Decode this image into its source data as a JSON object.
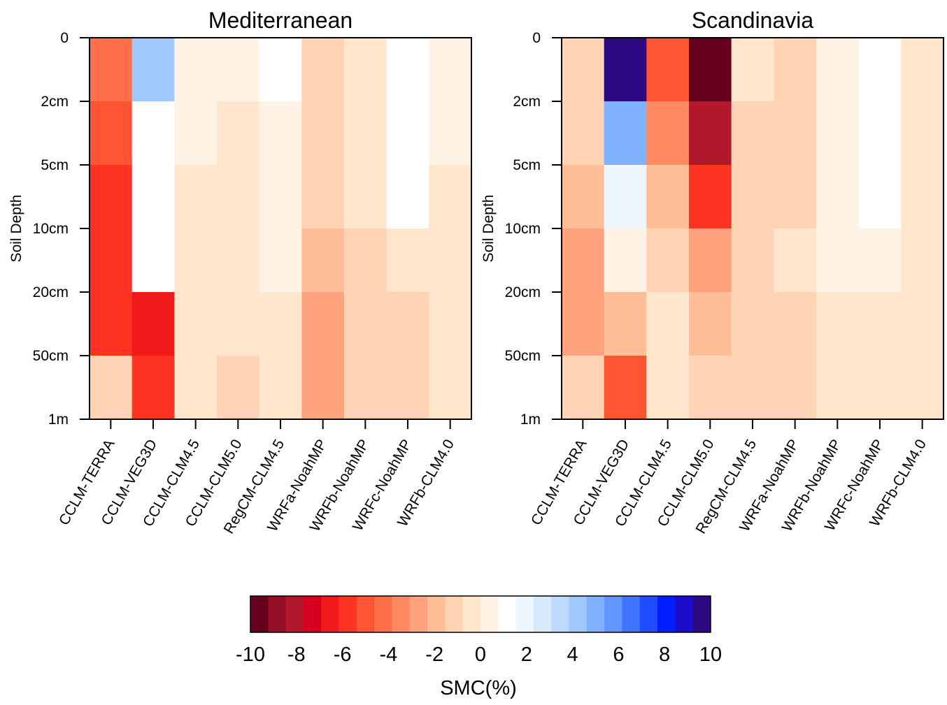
{
  "chart_data": [
    {
      "type": "heatmap",
      "title": "Mediterranean",
      "ylabel": "Soil Depth",
      "y_ticks": [
        "0",
        "2cm",
        "5cm",
        "10cm",
        "20cm",
        "50cm",
        "1m"
      ],
      "columns": [
        "CCLM-TERRA",
        "CCLM-VEG3D",
        "CCLM-CLM4.5",
        "CCLM-CLM5.0",
        "RegCM-CLM4.5",
        "WRFa-NoahMP",
        "WRFb-NoahMP",
        "WRFc-NoahMP",
        "WRFb-CLM4.0"
      ],
      "layers": [
        "0-2cm",
        "2-5cm",
        "5-10cm",
        "10-20cm",
        "20-50cm",
        "50cm-1m"
      ],
      "values": [
        [
          -4.5,
          4.5,
          0.3,
          0.3,
          0.8,
          -1.5,
          -0.2,
          1.0,
          0.3
        ],
        [
          -5.0,
          1.5,
          0.3,
          -0.2,
          0.5,
          -1.5,
          -0.2,
          1.0,
          0.3
        ],
        [
          -5.5,
          1.5,
          -0.2,
          -0.2,
          0.5,
          -1.5,
          -0.2,
          1.0,
          -0.2
        ],
        [
          -6.0,
          1.5,
          -0.2,
          -0.2,
          0.5,
          -2.0,
          -1.0,
          -0.5,
          -0.5
        ],
        [
          -5.5,
          -6.5,
          -0.5,
          -0.5,
          -0.2,
          -2.5,
          -1.5,
          -1.0,
          -0.5
        ],
        [
          -1.5,
          -6.0,
          -0.5,
          -1.5,
          -0.2,
          -2.5,
          -1.5,
          -1.0,
          -0.2
        ]
      ]
    },
    {
      "type": "heatmap",
      "title": "Scandinavia",
      "ylabel": "Soil Depth",
      "y_ticks": [
        "0",
        "2cm",
        "5cm",
        "10cm",
        "20cm",
        "50cm",
        "1m"
      ],
      "columns": [
        "CCLM-TERRA",
        "CCLM-VEG3D",
        "CCLM-CLM4.5",
        "CCLM-CLM5.0",
        "RegCM-CLM4.5",
        "WRFa-NoahMP",
        "WRFb-NoahMP",
        "WRFc-NoahMP",
        "WRFb-CLM4.0"
      ],
      "layers": [
        "0-2cm",
        "2-5cm",
        "5-10cm",
        "10-20cm",
        "20-50cm",
        "50cm-1m"
      ],
      "values": [
        [
          -1.5,
          10.0,
          -5.0,
          -10.0,
          -0.5,
          -1.0,
          0.3,
          0.8,
          -0.2
        ],
        [
          -1.5,
          5.0,
          -3.5,
          -8.0,
          -1.0,
          -1.0,
          0.3,
          0.8,
          -0.2
        ],
        [
          -2.0,
          2.0,
          -2.0,
          -5.5,
          -1.0,
          -1.0,
          0.3,
          0.8,
          -0.5
        ],
        [
          -2.5,
          0.5,
          -1.0,
          -3.0,
          -1.0,
          -0.5,
          0.3,
          0.3,
          -0.5
        ],
        [
          -2.5,
          -2.0,
          -0.5,
          -2.0,
          -1.0,
          -1.0,
          -0.2,
          -0.2,
          -0.2
        ],
        [
          -1.5,
          -5.0,
          -0.2,
          -1.5,
          -1.0,
          -1.0,
          -0.2,
          -0.2,
          -0.2
        ]
      ]
    }
  ],
  "colorbar": {
    "label": "SMC(%)",
    "range": [
      -10,
      10
    ],
    "ticks": [
      "-10",
      "-8",
      "-6",
      "-4",
      "-2",
      "0",
      "2",
      "4",
      "6",
      "8",
      "10"
    ],
    "colors": [
      "#67001f",
      "#960d26",
      "#b2182b",
      "#d6001c",
      "#f01a1a",
      "#ff3322",
      "#ff5533",
      "#ff6f4a",
      "#ff8a63",
      "#ffa37e",
      "#ffbd98",
      "#ffd4b4",
      "#ffe6cd",
      "#fff3e6",
      "#ffffff",
      "#edf6fd",
      "#d6eafb",
      "#bcdbfc",
      "#9fc8fd",
      "#80b1fe",
      "#6196fe",
      "#3f74ff",
      "#1f4cff",
      "#001eff",
      "#1a0ecc",
      "#2d0a82"
    ]
  }
}
